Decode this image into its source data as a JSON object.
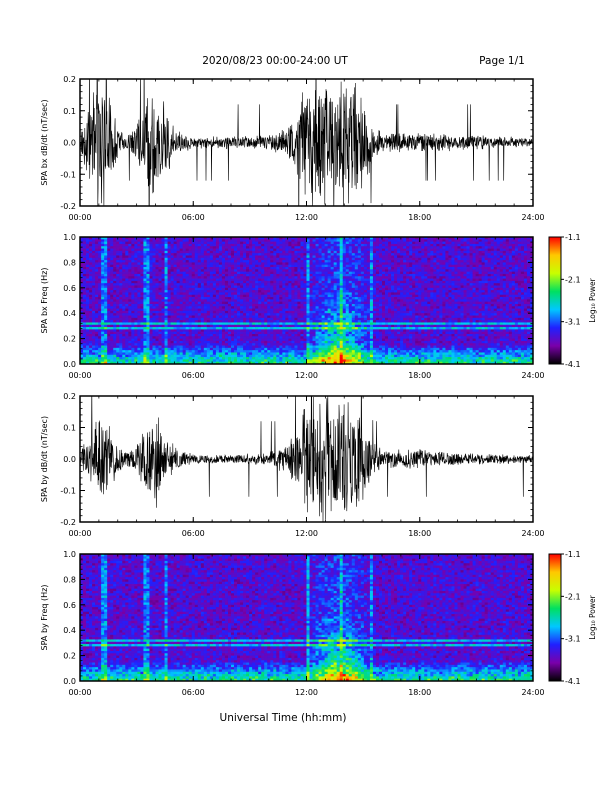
{
  "header": {
    "title": "2020/08/23  00:00-24:00 UT",
    "page": "Page 1/1"
  },
  "footer": {
    "xlabel": "Universal Time (hh:mm)"
  },
  "chart_data": [
    {
      "type": "line",
      "ylabel": "SPA bx dB/dt (nT/sec)",
      "xlim": [
        "00:00",
        "24:00"
      ],
      "ylim": [
        -0.2,
        0.2
      ],
      "x_ticks": [
        "00:00",
        "06:00",
        "12:00",
        "18:00",
        "24:00"
      ],
      "y_ticks": [
        "-0.2",
        "-0.1",
        "0.0",
        "0.1",
        "0.2"
      ],
      "line_color": "#000000",
      "envelope": [
        {
          "hour": 0.0,
          "amp": 0.03
        },
        {
          "hour": 0.5,
          "amp": 0.12
        },
        {
          "hour": 1.0,
          "amp": 0.22
        },
        {
          "hour": 1.5,
          "amp": 0.16
        },
        {
          "hour": 2.0,
          "amp": 0.05
        },
        {
          "hour": 2.5,
          "amp": 0.03
        },
        {
          "hour": 3.0,
          "amp": 0.06
        },
        {
          "hour": 3.5,
          "amp": 0.14
        },
        {
          "hour": 4.0,
          "amp": 0.18
        },
        {
          "hour": 4.5,
          "amp": 0.12
        },
        {
          "hour": 5.0,
          "amp": 0.04
        },
        {
          "hour": 6.0,
          "amp": 0.02
        },
        {
          "hour": 8.0,
          "amp": 0.02
        },
        {
          "hour": 10.0,
          "amp": 0.025
        },
        {
          "hour": 11.0,
          "amp": 0.05
        },
        {
          "hour": 12.0,
          "amp": 0.18
        },
        {
          "hour": 13.0,
          "amp": 0.22
        },
        {
          "hour": 14.0,
          "amp": 0.22
        },
        {
          "hour": 15.0,
          "amp": 0.16
        },
        {
          "hour": 15.5,
          "amp": 0.06
        },
        {
          "hour": 16.0,
          "amp": 0.03
        },
        {
          "hour": 18.0,
          "amp": 0.03
        },
        {
          "hour": 20.0,
          "amp": 0.025
        },
        {
          "hour": 22.0,
          "amp": 0.02
        },
        {
          "hour": 24.0,
          "amp": 0.015
        }
      ]
    },
    {
      "type": "heatmap",
      "ylabel": "SPA bx Freq (Hz)",
      "xlim": [
        "00:00",
        "24:00"
      ],
      "ylim": [
        0.0,
        1.0
      ],
      "x_ticks": [
        "00:00",
        "06:00",
        "12:00",
        "18:00",
        "24:00"
      ],
      "y_ticks": [
        "0.0",
        "0.2",
        "0.4",
        "0.6",
        "0.8",
        "1.0"
      ],
      "colorbar": {
        "label": "Log₁₀ Power",
        "ticks": [
          "-1.1",
          "-2.1",
          "-3.1",
          "-4.1"
        ],
        "range": [
          -4.1,
          -1.1
        ],
        "colors": [
          "#000000",
          "#7a00aa",
          "#2020ff",
          "#00c8ff",
          "#00e060",
          "#c8ff00",
          "#ffc800",
          "#ff0000"
        ]
      },
      "features": {
        "active_interval_hours": [
          12.0,
          15.5
        ],
        "persistent_line_hz": 0.3,
        "vertical_streak_hours": [
          1.3,
          3.5,
          4.5,
          12.1,
          13.8,
          15.5
        ]
      }
    },
    {
      "type": "line",
      "ylabel": "SPA by dB/dt (nT/sec)",
      "xlim": [
        "00:00",
        "24:00"
      ],
      "ylim": [
        -0.2,
        0.2
      ],
      "x_ticks": [
        "00:00",
        "06:00",
        "12:00",
        "18:00",
        "24:00"
      ],
      "y_ticks": [
        "-0.2",
        "-0.1",
        "0.0",
        "0.1",
        "0.2"
      ],
      "line_color": "#000000",
      "envelope": [
        {
          "hour": 0.0,
          "amp": 0.03
        },
        {
          "hour": 0.5,
          "amp": 0.08
        },
        {
          "hour": 1.0,
          "amp": 0.15
        },
        {
          "hour": 1.5,
          "amp": 0.12
        },
        {
          "hour": 2.0,
          "amp": 0.04
        },
        {
          "hour": 2.5,
          "amp": 0.03
        },
        {
          "hour": 3.0,
          "amp": 0.05
        },
        {
          "hour": 3.5,
          "amp": 0.13
        },
        {
          "hour": 4.0,
          "amp": 0.15
        },
        {
          "hour": 4.5,
          "amp": 0.1
        },
        {
          "hour": 5.0,
          "amp": 0.04
        },
        {
          "hour": 6.0,
          "amp": 0.015
        },
        {
          "hour": 8.0,
          "amp": 0.015
        },
        {
          "hour": 10.0,
          "amp": 0.02
        },
        {
          "hour": 11.0,
          "amp": 0.05
        },
        {
          "hour": 12.0,
          "amp": 0.18
        },
        {
          "hour": 13.0,
          "amp": 0.22
        },
        {
          "hour": 14.0,
          "amp": 0.2
        },
        {
          "hour": 15.0,
          "amp": 0.12
        },
        {
          "hour": 15.5,
          "amp": 0.05
        },
        {
          "hour": 16.0,
          "amp": 0.03
        },
        {
          "hour": 18.0,
          "amp": 0.03
        },
        {
          "hour": 20.0,
          "amp": 0.02
        },
        {
          "hour": 22.0,
          "amp": 0.015
        },
        {
          "hour": 24.0,
          "amp": 0.012
        }
      ]
    },
    {
      "type": "heatmap",
      "ylabel": "SPA by Freq (Hz)",
      "xlim": [
        "00:00",
        "24:00"
      ],
      "ylim": [
        0.0,
        1.0
      ],
      "x_ticks": [
        "00:00",
        "06:00",
        "12:00",
        "18:00",
        "24:00"
      ],
      "y_ticks": [
        "0.0",
        "0.2",
        "0.4",
        "0.6",
        "0.8",
        "1.0"
      ],
      "colorbar": {
        "label": "Log₁₀ Power",
        "ticks": [
          "-1.1",
          "-2.1",
          "-3.1",
          "-4.1"
        ],
        "range": [
          -4.1,
          -1.1
        ],
        "colors": [
          "#000000",
          "#7a00aa",
          "#2020ff",
          "#00c8ff",
          "#00e060",
          "#c8ff00",
          "#ffc800",
          "#ff0000"
        ]
      },
      "features": {
        "active_interval_hours": [
          12.0,
          15.5
        ],
        "persistent_line_hz": 0.3,
        "vertical_streak_hours": [
          1.3,
          3.5,
          4.5,
          12.1,
          13.8,
          15.5
        ]
      }
    }
  ]
}
